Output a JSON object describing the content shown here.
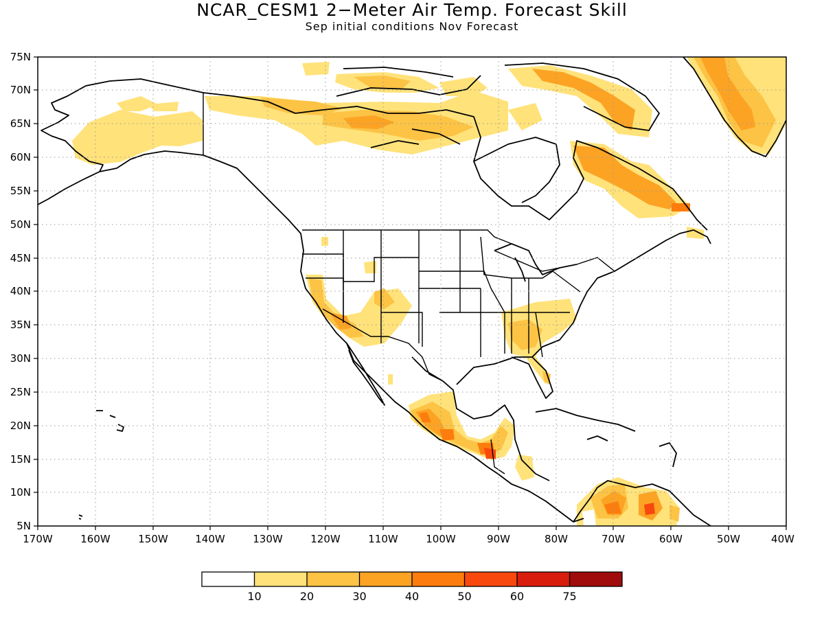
{
  "title": "NCAR_CESM1 2−Meter Air Temp. Forecast Skill",
  "subtitle": "Sep initial conditions  Nov Forecast",
  "axes": {
    "lat_ticks": [
      "75N",
      "70N",
      "65N",
      "60N",
      "55N",
      "50N",
      "45N",
      "40N",
      "35N",
      "30N",
      "25N",
      "20N",
      "15N",
      "10N",
      "5N"
    ],
    "lon_ticks": [
      "170W",
      "160W",
      "150W",
      "140W",
      "130W",
      "120W",
      "110W",
      "100W",
      "90W",
      "80W",
      "70W",
      "60W",
      "50W",
      "40W"
    ]
  },
  "colorbar": {
    "labels": [
      "10",
      "20",
      "30",
      "40",
      "50",
      "60",
      "75"
    ],
    "colors": [
      "#ffffff",
      "#ffe27a",
      "#fcc345",
      "#fca324",
      "#fc7d0d",
      "#f9480d",
      "#d91d0d",
      "#a00c0c"
    ]
  }
}
